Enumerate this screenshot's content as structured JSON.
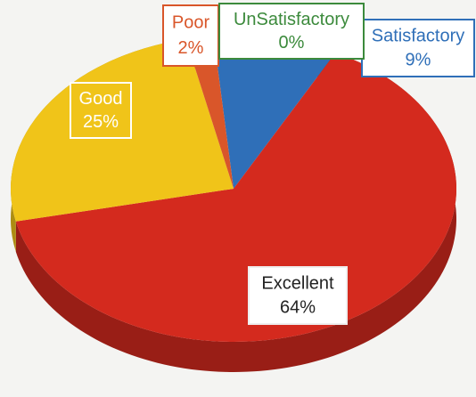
{
  "chart_data": {
    "type": "pie",
    "categories": [
      "Satisfactory",
      "Excellent",
      "Good",
      "Poor",
      "UnSatisfactory"
    ],
    "values": [
      9,
      64,
      25,
      2,
      0
    ],
    "value_labels": [
      "9%",
      "64%",
      "25%",
      "2%",
      "0%"
    ],
    "colors": [
      "#2f6fb8",
      "#d42a1e",
      "#f0c419",
      "#d9562a",
      "#3c8a3c"
    ]
  }
}
